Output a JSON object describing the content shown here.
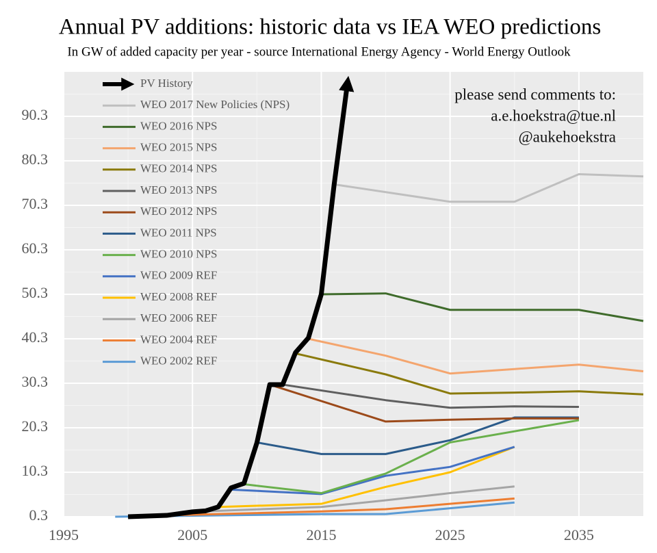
{
  "chart_data": {
    "type": "line",
    "title": "Annual PV additions: historic data vs IEA WEO predictions",
    "subtitle": "In GW of added capacity per year - source International Energy Agency - World Energy Outlook",
    "annotation": [
      "please send comments to:",
      "a.e.hoekstra@tue.nl",
      "@aukehoekstra"
    ],
    "xlim": [
      1995,
      2040
    ],
    "xticks": [
      1995,
      2005,
      2015,
      2025,
      2035
    ],
    "ylim": [
      0.3,
      100.3
    ],
    "yticks": [
      0.3,
      10.3,
      20.3,
      30.3,
      40.3,
      50.3,
      60.3,
      70.3,
      80.3,
      90.3
    ],
    "grid": true,
    "series": [
      {
        "name": "PV History",
        "color": "#000000",
        "x": [
          2000,
          2003,
          2005,
          2006,
          2007,
          2008,
          2009,
          2010,
          2011,
          2012,
          2013,
          2014,
          2015,
          2016,
          2017
        ],
        "values": [
          0.3,
          0.6,
          1.4,
          1.6,
          2.5,
          6.8,
          7.8,
          16.9,
          30,
          30,
          37.2,
          40.5,
          50.3,
          75,
          97
        ]
      },
      {
        "name": "WEO 2017 New Policies (NPS)",
        "color": "#bfbfbf",
        "x": [
          2016,
          2025,
          2030,
          2035,
          2040
        ],
        "values": [
          75,
          71.1,
          71.1,
          77.3,
          76.8
        ]
      },
      {
        "name": "WEO 2016 NPS",
        "color": "#3f6b2b",
        "x": [
          2015,
          2020,
          2025,
          2030,
          2035,
          2040
        ],
        "values": [
          50.3,
          50.5,
          46.8,
          46.8,
          46.8,
          44.3
        ]
      },
      {
        "name": "WEO 2015 NPS",
        "color": "#f4a56e",
        "x": [
          2014,
          2020,
          2025,
          2030,
          2035,
          2040
        ],
        "values": [
          40.3,
          36.5,
          32.5,
          33.5,
          34.5,
          33
        ]
      },
      {
        "name": "WEO 2014 NPS",
        "color": "#8a7a0c",
        "x": [
          2013,
          2020,
          2025,
          2030,
          2035,
          2040
        ],
        "values": [
          37,
          32.3,
          28,
          28.2,
          28.5,
          27.8
        ]
      },
      {
        "name": "WEO 2013 NPS",
        "color": "#5f5f5f",
        "x": [
          2012,
          2020,
          2025,
          2030,
          2035
        ],
        "values": [
          30,
          26.5,
          24.8,
          25.1,
          25
        ]
      },
      {
        "name": "WEO 2012 NPS",
        "color": "#9c4a1a",
        "x": [
          2011,
          2020,
          2025,
          2030,
          2035
        ],
        "values": [
          30,
          21.7,
          22.1,
          22.4,
          22.4
        ]
      },
      {
        "name": "WEO 2011 NPS",
        "color": "#2b5b8a",
        "x": [
          2010,
          2015,
          2020,
          2025,
          2030,
          2035
        ],
        "values": [
          17,
          14.4,
          14.4,
          17.5,
          22.6,
          22.6
        ]
      },
      {
        "name": "WEO 2010 NPS",
        "color": "#6ab04c",
        "x": [
          2009,
          2015,
          2020,
          2025,
          2030,
          2035
        ],
        "values": [
          7.6,
          5.6,
          10,
          17,
          19.5,
          22
        ]
      },
      {
        "name": "WEO 2009 REF",
        "color": "#4472c4",
        "x": [
          2008,
          2015,
          2020,
          2025,
          2030
        ],
        "values": [
          6.4,
          5.4,
          9.5,
          11.5,
          16
        ]
      },
      {
        "name": "WEO 2008 REF",
        "color": "#ffc000",
        "x": [
          2007,
          2015,
          2020,
          2025,
          2030
        ],
        "values": [
          2.5,
          3.2,
          7,
          10.3,
          16
        ]
      },
      {
        "name": "WEO 2006 REF",
        "color": "#a5a5a5",
        "x": [
          2005,
          2015,
          2020,
          2025,
          2030
        ],
        "values": [
          1.4,
          2.5,
          4,
          5.6,
          7.1
        ]
      },
      {
        "name": "WEO 2004 REF",
        "color": "#ed7d31",
        "x": [
          2003,
          2015,
          2020,
          2025,
          2030
        ],
        "values": [
          0.6,
          1.5,
          2,
          3.2,
          4.4
        ]
      },
      {
        "name": "WEO 2002 REF",
        "color": "#5b9bd5",
        "x": [
          1999,
          2015,
          2020,
          2025,
          2030
        ],
        "values": [
          0.3,
          0.9,
          0.9,
          2.2,
          3.5
        ]
      }
    ]
  }
}
